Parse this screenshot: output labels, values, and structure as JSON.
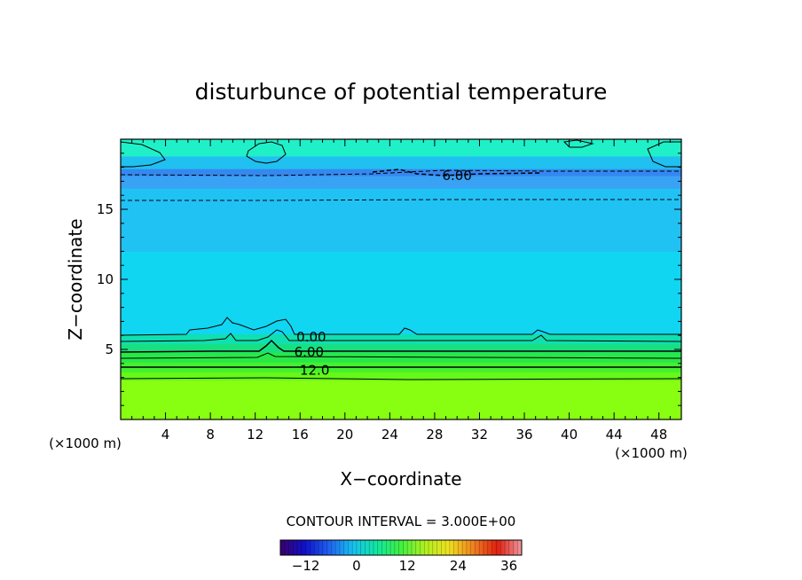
{
  "chart_data": {
    "type": "heatmap",
    "title": "disturbunce of potential temperature",
    "xlabel": "X−coordinate",
    "ylabel": "Z−coordinate",
    "x_unit_left": "(×1000 m)",
    "x_unit_right": "(×1000 m)",
    "xlim": [
      0,
      50
    ],
    "ylim": [
      0,
      20
    ],
    "x_ticks": [
      "4",
      "8",
      "12",
      "16",
      "20",
      "24",
      "28",
      "32",
      "36",
      "40",
      "44",
      "48"
    ],
    "y_ticks": [
      "5",
      "10",
      "15"
    ],
    "contour_interval_text": "CONTOUR INTERVAL = 3.000E+00",
    "contour_labels": [
      {
        "text": "0.00",
        "x": 17.0,
        "z": 5.9
      },
      {
        "text": "6.00",
        "x": 16.8,
        "z": 4.8
      },
      {
        "text": "12.0",
        "x": 17.3,
        "z": 3.5
      },
      {
        "text": "6.00",
        "x": 30.0,
        "z": 17.4
      }
    ],
    "colorbar": {
      "range": [
        -18,
        39
      ],
      "ticks": [
        "−12",
        "0",
        "12",
        "24",
        "36"
      ],
      "tick_values": [
        -12,
        0,
        12,
        24,
        36
      ]
    },
    "bands": [
      {
        "z0": 0,
        "z1": 2.8,
        "value": 18,
        "color": "#88ff10"
      },
      {
        "z0": 2.8,
        "z1": 3.4,
        "value": 15,
        "color": "#66f818"
      },
      {
        "z0": 3.4,
        "z1": 4.1,
        "value": 12,
        "color": "#44f030"
      },
      {
        "z0": 4.1,
        "z1": 4.8,
        "value": 9,
        "color": "#28e848"
      },
      {
        "z0": 4.8,
        "z1": 5.4,
        "value": 6,
        "color": "#18e080"
      },
      {
        "z0": 5.4,
        "z1": 6.1,
        "value": 3,
        "color": "#10e0b0"
      },
      {
        "z0": 6.1,
        "z1": 12,
        "value": 0,
        "color": "#10d6f2"
      },
      {
        "z0": 12,
        "z1": 16.5,
        "value": -3,
        "color": "#20c2f4"
      },
      {
        "z0": 16.5,
        "z1": 17.4,
        "value": -6,
        "color": "#3aa2f4"
      },
      {
        "z0": 17.4,
        "z1": 17.9,
        "value": -9,
        "color": "#3488f0"
      },
      {
        "z0": 17.9,
        "z1": 18.8,
        "value": -3,
        "color": "#20c0f0"
      },
      {
        "z0": 18.8,
        "z1": 20,
        "value": 3,
        "color": "#20f0c8"
      }
    ],
    "colors": {
      "colorbar_gradient": [
        "#3a006a",
        "#1010c8",
        "#1e60f0",
        "#18c0f0",
        "#10e8a0",
        "#40f040",
        "#b0f020",
        "#f0e020",
        "#f08020",
        "#e02010",
        "#f098a0"
      ]
    }
  }
}
